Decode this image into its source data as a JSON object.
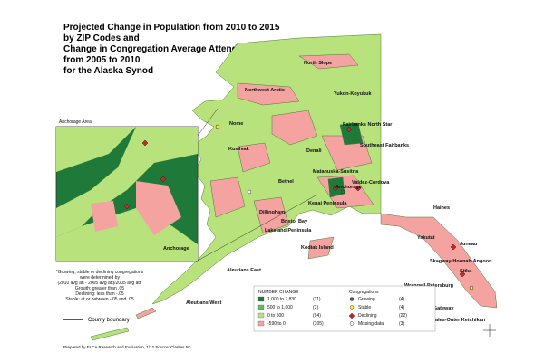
{
  "title": [
    "Projected Change in Population from 2010 to 2015",
    "by ZIP Codes and",
    "Change in Congregation Average Attendance",
    "from 2005 to 2010",
    "for the Alaska Synod"
  ],
  "inset": {
    "title": "Anchorage Area",
    "labels": [
      "Anchorage"
    ]
  },
  "regions": [
    "North Slope",
    "Northwest Arctic",
    "Yukon-Koyukuk",
    "Nome",
    "Fairbanks North Star",
    "Southeast Fairbanks",
    "Denali",
    "Kusilvak",
    "Matanuska-Susitna",
    "Bethel",
    "Anchorage",
    "Valdez-Cordova",
    "Kenai Peninsula",
    "Dillingham",
    "Bristol Bay",
    "Lake and Peninsula",
    "Kodiak Island",
    "Aleutians East",
    "Aleutians West",
    "Haines",
    "Yakutat",
    "Juneau",
    "Skagway-Hoonah-Angoon",
    "Sitka",
    "Wrangell-Petersburg",
    "Ketchikan Gateway",
    "Prince of Wales-Outer Ketchikan"
  ],
  "footnote": [
    "*Growing, stable or declining congregations",
    "were determined by",
    "(2010 avg att - 2005 avg att)/2005 avg att:",
    "Growth:  greater than .05",
    "Declining:  less than -.05",
    "Stable:  at or between -.05 and .05"
  ],
  "county_boundary": "County boundary",
  "legend_change": {
    "title": "NUMBER CHANGE",
    "rows": [
      [
        "1,000 to 7,830",
        "(11)"
      ],
      [
        "500 to 1,000",
        "(3)"
      ],
      [
        "0 to 500",
        "(94)"
      ],
      [
        "-590 to 0",
        "(105)"
      ]
    ]
  },
  "legend_congregations": {
    "title": "Congregations",
    "rows": [
      [
        "Growing",
        "(4)"
      ],
      [
        "Stable",
        "(4)"
      ],
      [
        "Declining",
        "(22)"
      ],
      [
        "Missing data",
        "(3)"
      ]
    ]
  },
  "credit": "Prepared by ELCA Research and Evaluation, 1/12 Source: Claritas Inc."
}
